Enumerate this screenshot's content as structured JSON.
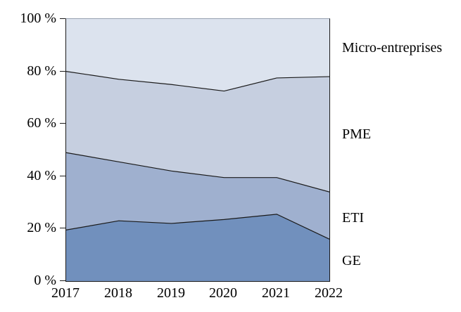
{
  "chart_data": {
    "type": "area",
    "subtype": "stacked-100-percent",
    "title": "",
    "xlabel": "",
    "ylabel": "",
    "ylim": [
      0,
      100
    ],
    "grid": false,
    "legend_position": "right-of-plot",
    "line_color": "#1a1a1a",
    "categories": [
      "2017",
      "2018",
      "2019",
      "2020",
      "2021",
      "2022"
    ],
    "series": [
      {
        "name": "GE",
        "color": "#7190bd",
        "values": [
          19.5,
          23.0,
          22.0,
          23.5,
          25.5,
          16.0
        ]
      },
      {
        "name": "ETI",
        "color": "#9fb0cf",
        "values": [
          29.5,
          22.5,
          20.0,
          16.0,
          14.0,
          18.0
        ]
      },
      {
        "name": "PME",
        "color": "#c6cfe0",
        "values": [
          31.0,
          31.5,
          33.0,
          33.0,
          38.0,
          44.0
        ]
      },
      {
        "name": "Micro-entreprises",
        "color": "#dce3ee",
        "values": [
          20.0,
          23.0,
          25.0,
          27.5,
          22.5,
          22.0
        ]
      }
    ],
    "cumulative_boundaries": {
      "GE": [
        19.5,
        23.0,
        22.0,
        23.5,
        25.5,
        16.0
      ],
      "GE+ETI": [
        49.0,
        45.5,
        42.0,
        39.5,
        39.5,
        34.0
      ],
      "GE+ETI+PME": [
        80.0,
        77.0,
        75.0,
        72.5,
        77.5,
        78.0
      ]
    },
    "y_ticks": [
      {
        "value": 100,
        "label": "100 %"
      },
      {
        "value": 80,
        "label": "80 %"
      },
      {
        "value": 60,
        "label": "60 %"
      },
      {
        "value": 40,
        "label": "40 %"
      },
      {
        "value": 20,
        "label": "20 %"
      },
      {
        "value": 0,
        "label": "0 %"
      }
    ]
  }
}
